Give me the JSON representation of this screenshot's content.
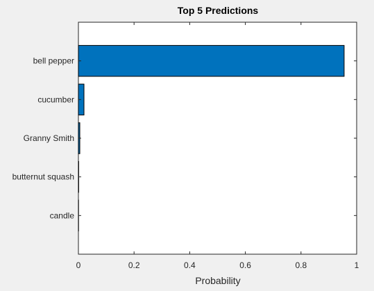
{
  "chart_data": {
    "type": "bar",
    "orientation": "horizontal",
    "title": "Top 5 Predictions",
    "xlabel": "Probability",
    "ylabel": "",
    "categories": [
      "bell pepper",
      "cucumber",
      "Granny Smith",
      "butternut squash",
      "candle"
    ],
    "values": [
      0.955,
      0.02,
      0.005,
      0.001,
      0.0005
    ],
    "xlim": [
      0,
      1
    ],
    "xticks": [
      0,
      0.2,
      0.4,
      0.6,
      0.8,
      1
    ],
    "xtick_labels": [
      "0",
      "0.2",
      "0.4",
      "0.6",
      "0.8",
      "1"
    ],
    "grid": false,
    "legend": "none",
    "colors": {
      "bar_fill": "#0072bd",
      "bar_edge": "#000000",
      "axes_background": "#ffffff",
      "figure_background": "#f0f0f0",
      "axis_line": "#262626"
    }
  }
}
